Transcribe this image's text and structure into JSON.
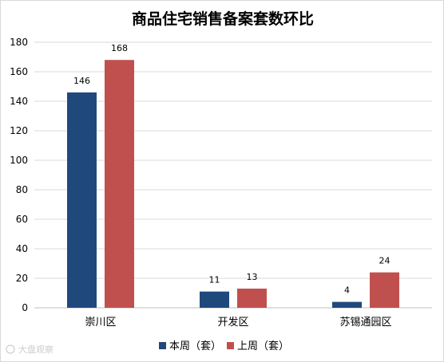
{
  "chart_data": {
    "type": "bar",
    "title": "商品住宅销售备案套数环比",
    "categories": [
      "崇川区",
      "开发区",
      "苏锡通园区"
    ],
    "series": [
      {
        "name": "本周（套）",
        "values": [
          146,
          11,
          4
        ],
        "color": "#1f497d"
      },
      {
        "name": "上周（套）",
        "values": [
          168,
          13,
          24
        ],
        "color": "#c0504d"
      }
    ],
    "ylim": [
      0,
      180
    ],
    "yticks": [
      0,
      20,
      40,
      60,
      80,
      100,
      120,
      140,
      160,
      180
    ],
    "grid": true,
    "legend_position": "bottom-center",
    "xlabel": "",
    "ylabel": ""
  },
  "watermark": {
    "text": "大盘观察"
  },
  "colors": {
    "gridline": "#d9d9d9",
    "axis": "#bfbfbf"
  }
}
